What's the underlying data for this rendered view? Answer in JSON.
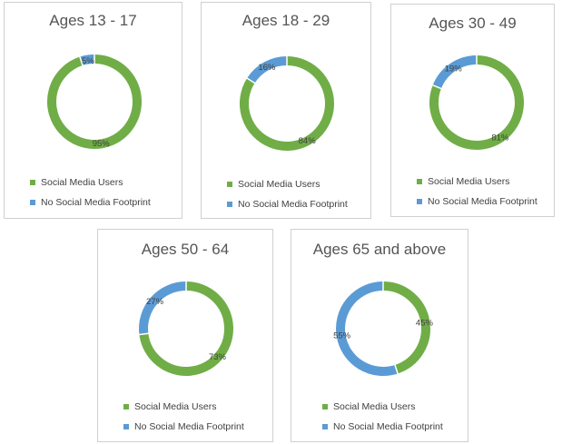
{
  "colors": {
    "social": "#70AD47",
    "none": "#5B9BD5"
  },
  "chart_data": [
    {
      "type": "pie",
      "title": "Ages 13 - 17",
      "series": [
        {
          "name": "Social Media Users",
          "values": [
            95
          ],
          "label": "95%"
        },
        {
          "name": "No Social Media Footprint",
          "values": [
            5
          ],
          "label": "5%"
        }
      ],
      "legend_labels": [
        "Social Media Users",
        "No Social Media Footprint"
      ]
    },
    {
      "type": "pie",
      "title": "Ages 18 - 29",
      "series": [
        {
          "name": "Social Media Users",
          "values": [
            84
          ],
          "label": "84%"
        },
        {
          "name": "No Social Media Footprint",
          "values": [
            16
          ],
          "label": "16%"
        }
      ],
      "legend_labels": [
        "Social Media Users",
        "No Social Media Footprint"
      ]
    },
    {
      "type": "pie",
      "title": "Ages 30 - 49",
      "series": [
        {
          "name": "Social Media Users",
          "values": [
            81
          ],
          "label": "81%"
        },
        {
          "name": "No Social Media Footprint",
          "values": [
            19
          ],
          "label": "19%"
        }
      ],
      "legend_labels": [
        "Social Media Users",
        "No Social Media Footprint"
      ]
    },
    {
      "type": "pie",
      "title": "Ages 50 - 64",
      "series": [
        {
          "name": "Social Media Users",
          "values": [
            73
          ],
          "label": "73%"
        },
        {
          "name": "No Social Media Footprint",
          "values": [
            27
          ],
          "label": "27%"
        }
      ],
      "legend_labels": [
        "Social Media Users",
        "No Social Media Footprint"
      ]
    },
    {
      "type": "pie",
      "title": "Ages 65 and above",
      "series": [
        {
          "name": "Social Media Users",
          "values": [
            45
          ],
          "label": "45%"
        },
        {
          "name": "No Social Media Footprint",
          "values": [
            55
          ],
          "label": "55%"
        }
      ],
      "legend_labels": [
        "Social Media Users",
        "No Social Media Footprint"
      ]
    }
  ]
}
